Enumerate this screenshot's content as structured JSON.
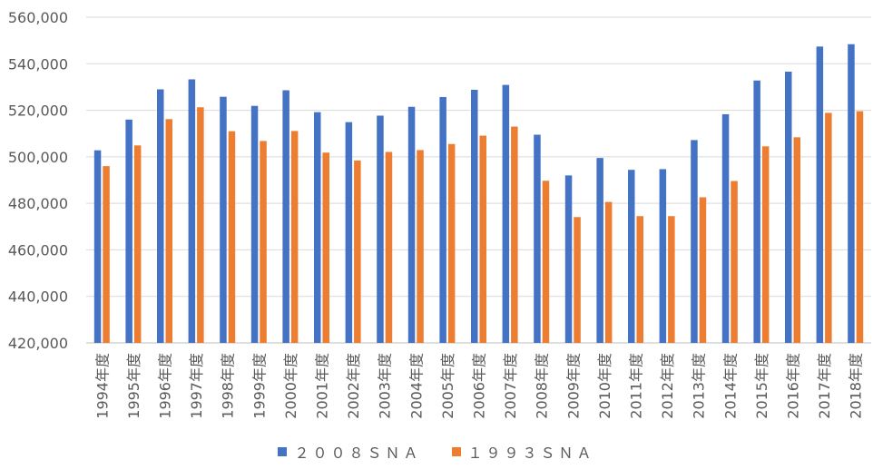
{
  "chart_data": {
    "type": "bar",
    "categories": [
      "1994年度",
      "1995年度",
      "1996年度",
      "1997年度",
      "1998年度",
      "1999年度",
      "2000年度",
      "2001年度",
      "2002年度",
      "2003年度",
      "2004年度",
      "2005年度",
      "2006年度",
      "2007年度",
      "2008年度",
      "2009年度",
      "2010年度",
      "2011年度",
      "2012年度",
      "2013年度",
      "2014年度",
      "2015年度",
      "2016年度",
      "2017年度",
      "2018年度"
    ],
    "series": [
      {
        "name": "２００８ＳＮＡ",
        "color": "#4472C4",
        "values": [
          502800,
          516000,
          529000,
          533300,
          525800,
          521900,
          528600,
          519200,
          514900,
          517700,
          521500,
          525700,
          528800,
          530900,
          509500,
          492000,
          499500,
          494400,
          494700,
          507200,
          518300,
          532800,
          536600,
          547400,
          548400
        ]
      },
      {
        "name": "１９９３ＳＮＡ",
        "color": "#ED7D31",
        "values": [
          496000,
          504900,
          516200,
          521300,
          511000,
          506800,
          511100,
          501800,
          498400,
          502100,
          502900,
          505500,
          509100,
          513000,
          489700,
          474100,
          480600,
          474500,
          474500,
          482600,
          489600,
          504500,
          508400,
          518900,
          519600
        ]
      }
    ],
    "yticks": [
      "420,000",
      "440,000",
      "460,000",
      "480,000",
      "500,000",
      "520,000",
      "540,000",
      "560,000"
    ],
    "ylim": [
      420000,
      560000
    ],
    "grid": true,
    "legend": "bottom",
    "title": "",
    "xlabel": "",
    "ylabel": ""
  }
}
